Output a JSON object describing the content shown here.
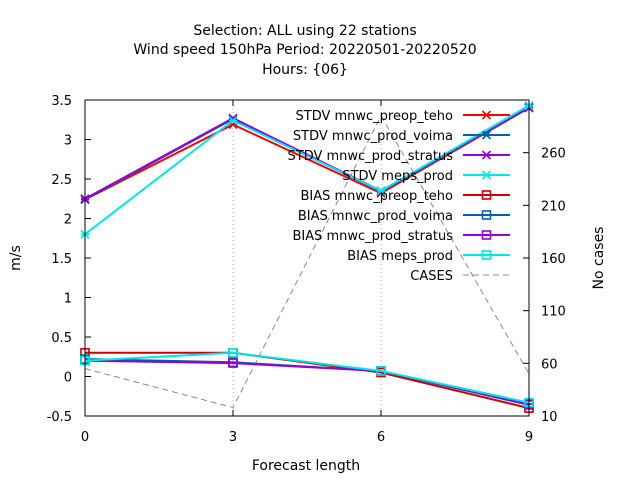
{
  "chart_data": {
    "type": "line",
    "title_lines": [
      "Selection: ALL using    22 stations",
      "Wind speed 150hPa   Period: 20220501-20220520",
      "Hours: {06}"
    ],
    "xlabel": "Forecast length",
    "ylabel": "m/s",
    "y2label": "No cases",
    "x": [
      0,
      3,
      6,
      9
    ],
    "xlim": [
      0,
      9
    ],
    "ylim": [
      -0.5,
      3.5
    ],
    "y2lim": [
      10,
      310
    ],
    "xticks": [
      "0",
      "3",
      "6",
      "9"
    ],
    "yticks": [
      "-0.5",
      "0",
      "0.5",
      "1",
      "1.5",
      "2",
      "2.5",
      "3",
      "3.5"
    ],
    "y2ticks": [
      "10",
      "60",
      "110",
      "160",
      "210",
      "260"
    ],
    "grid": "vertical dotted at x ticks",
    "legend_position": "top-right",
    "series": [
      {
        "name": "STDV mnwc_preop_teho",
        "values": [
          2.24,
          3.19,
          2.32,
          3.4
        ],
        "color": "#ff0000",
        "marker": "x-star",
        "axis": "y"
      },
      {
        "name": "STDV mnwc_prod_voima",
        "values": [
          2.24,
          3.26,
          2.34,
          3.4
        ],
        "color": "#0060ad",
        "marker": "x-star",
        "axis": "y"
      },
      {
        "name": "STDV mnwc_prod_stratus",
        "values": [
          2.25,
          3.27,
          2.35,
          3.41
        ],
        "color": "#9400d3",
        "marker": "x-star",
        "axis": "y"
      },
      {
        "name": "STDV meps_prod",
        "values": [
          1.8,
          3.24,
          2.35,
          3.43
        ],
        "color": "#00e5e5",
        "marker": "x-star",
        "axis": "y"
      },
      {
        "name": "BIAS mnwc_preop_teho",
        "values": [
          0.3,
          0.3,
          0.05,
          -0.4
        ],
        "color": "#cc0000",
        "marker": "open-square",
        "axis": "y"
      },
      {
        "name": "BIAS mnwc_prod_voima",
        "values": [
          0.22,
          0.18,
          0.07,
          -0.36
        ],
        "color": "#0060ad",
        "marker": "open-square",
        "axis": "y"
      },
      {
        "name": "BIAS mnwc_prod_stratus",
        "values": [
          0.2,
          0.17,
          0.07,
          -0.35
        ],
        "color": "#9400d3",
        "marker": "open-square",
        "axis": "y"
      },
      {
        "name": "BIAS meps_prod",
        "values": [
          0.2,
          0.3,
          0.07,
          -0.33
        ],
        "color": "#00e5e5",
        "marker": "open-square",
        "axis": "y"
      },
      {
        "name": "CASES",
        "values": [
          55,
          18,
          295,
          50
        ],
        "color": "#888888",
        "marker": "none",
        "dash": "dashed",
        "axis": "y2"
      }
    ]
  }
}
